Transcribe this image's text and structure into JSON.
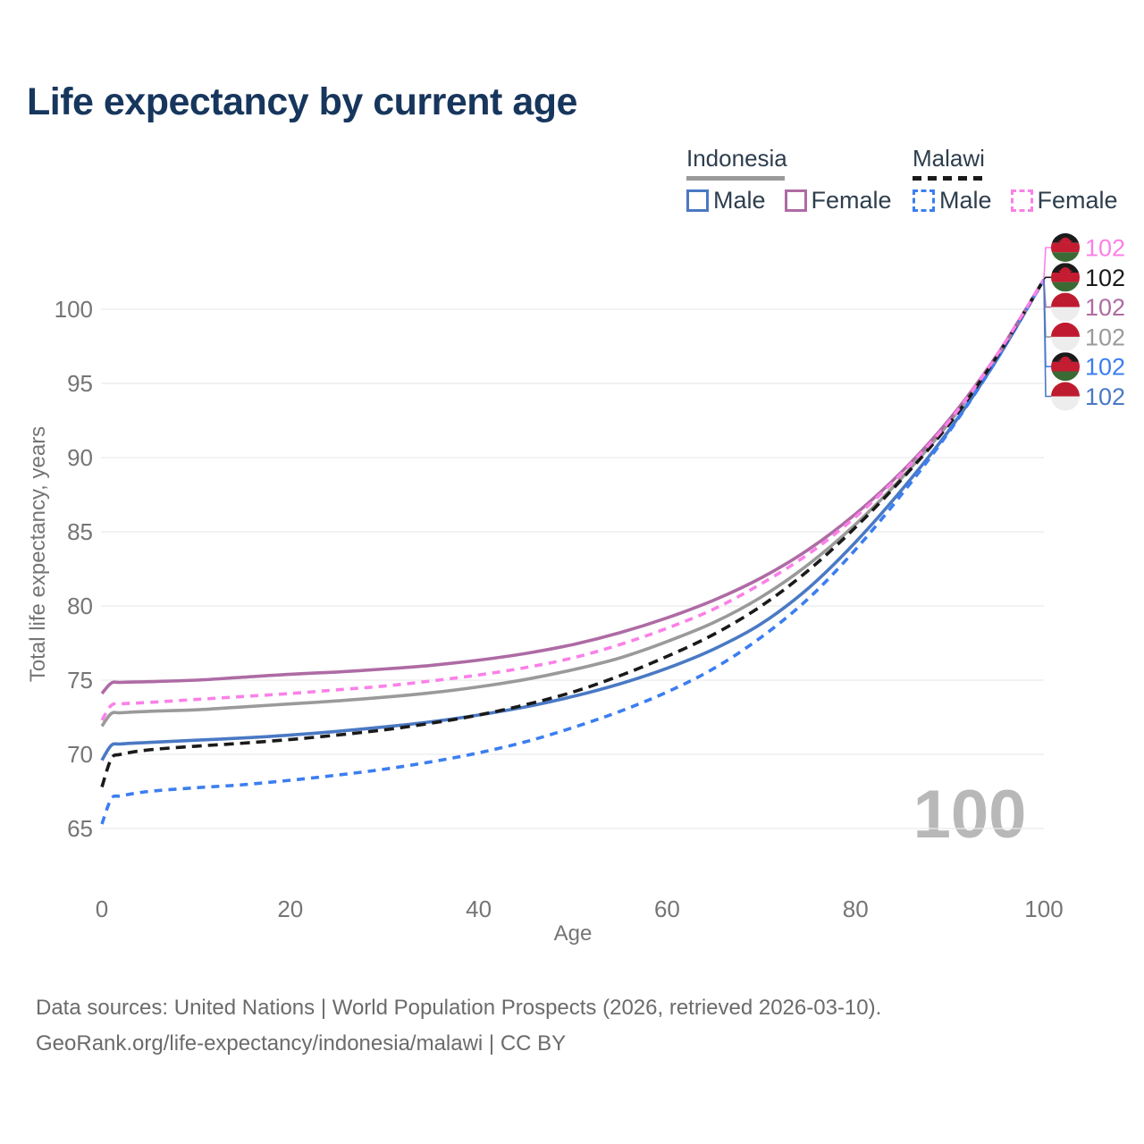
{
  "title": "Life expectancy by current age",
  "legend": {
    "groups": [
      {
        "country": "Indonesia",
        "line_style": "solid",
        "underline_color": "#9a9a9a",
        "items": [
          {
            "label": "Male",
            "color": "#4a79c4",
            "dashed": false
          },
          {
            "label": "Female",
            "color": "#ae6ba4",
            "dashed": false
          }
        ]
      },
      {
        "country": "Malawi",
        "line_style": "dashed",
        "underline_color": "#1a1a1a",
        "items": [
          {
            "label": "Male",
            "color": "#3b7ef0",
            "dashed": true
          },
          {
            "label": "Female",
            "color": "#fb80e8",
            "dashed": true
          }
        ]
      }
    ]
  },
  "chart_data": {
    "type": "line",
    "title": "Life expectancy by current age",
    "xlabel": "Age",
    "ylabel": "Total life expectancy, years",
    "x_ticks": [
      0,
      20,
      40,
      60,
      80,
      100
    ],
    "y_ticks": [
      65,
      70,
      75,
      80,
      85,
      90,
      95,
      100
    ],
    "xlim": [
      0,
      100
    ],
    "ylim": [
      63.5,
      103
    ],
    "grid": "horizontal-only",
    "legend_position": "top-right",
    "hover_age": "100",
    "x": [
      0,
      1,
      2,
      5,
      10,
      15,
      20,
      25,
      30,
      35,
      40,
      45,
      50,
      55,
      60,
      65,
      70,
      75,
      80,
      85,
      90,
      95,
      100
    ],
    "series": [
      {
        "id": "malawi-female",
        "country": "Malawi",
        "sex": "Female",
        "color": "#fb80e8",
        "dashed": true,
        "flag": "malawi",
        "end_label": "102",
        "values": [
          72.3,
          73.3,
          73.4,
          73.5,
          73.7,
          73.9,
          74.1,
          74.35,
          74.6,
          74.95,
          75.35,
          75.85,
          76.5,
          77.4,
          78.5,
          79.8,
          81.5,
          83.5,
          86.0,
          89.0,
          92.5,
          96.9,
          102
        ]
      },
      {
        "id": "malawi-both",
        "country": "Malawi",
        "sex": "Both sexes",
        "color": "#1a1a1a",
        "dashed": true,
        "flag": "malawi",
        "end_label": "102",
        "values": [
          67.8,
          69.7,
          70.0,
          70.3,
          70.55,
          70.75,
          71.0,
          71.3,
          71.65,
          72.1,
          72.65,
          73.35,
          74.2,
          75.3,
          76.6,
          78.1,
          80.0,
          82.4,
          85.3,
          88.6,
          92.3,
          96.8,
          102
        ]
      },
      {
        "id": "indonesia-female",
        "country": "Indonesia",
        "sex": "Female",
        "color": "#ae6ba4",
        "dashed": false,
        "flag": "indonesia",
        "end_label": "102",
        "values": [
          74.1,
          74.8,
          74.85,
          74.9,
          75.0,
          75.2,
          75.4,
          75.55,
          75.75,
          76.0,
          76.35,
          76.8,
          77.4,
          78.2,
          79.2,
          80.4,
          81.9,
          83.8,
          86.2,
          89.1,
          92.6,
          96.9,
          102
        ]
      },
      {
        "id": "indonesia-both",
        "country": "Indonesia",
        "sex": "Both sexes",
        "color": "#9a9a9a",
        "dashed": false,
        "flag": "indonesia",
        "end_label": "102",
        "values": [
          71.9,
          72.75,
          72.8,
          72.9,
          73.0,
          73.2,
          73.4,
          73.6,
          73.85,
          74.15,
          74.55,
          75.05,
          75.7,
          76.5,
          77.6,
          78.9,
          80.6,
          82.8,
          85.5,
          88.7,
          92.4,
          96.8,
          102
        ]
      },
      {
        "id": "malawi-male",
        "country": "Malawi",
        "sex": "Male",
        "color": "#3b7ef0",
        "dashed": true,
        "flag": "malawi",
        "end_label": "102",
        "values": [
          65.3,
          67.0,
          67.2,
          67.5,
          67.75,
          67.95,
          68.25,
          68.6,
          69.0,
          69.5,
          70.1,
          70.85,
          71.8,
          72.9,
          74.2,
          75.8,
          77.9,
          80.5,
          83.8,
          87.6,
          91.8,
          96.6,
          102
        ]
      },
      {
        "id": "indonesia-male",
        "country": "Indonesia",
        "sex": "Male",
        "color": "#4a79c4",
        "dashed": false,
        "flag": "indonesia",
        "end_label": "102",
        "values": [
          69.6,
          70.6,
          70.7,
          70.8,
          70.95,
          71.1,
          71.3,
          71.55,
          71.85,
          72.2,
          72.65,
          73.2,
          73.9,
          74.75,
          75.8,
          77.1,
          78.8,
          81.2,
          84.3,
          87.9,
          91.9,
          96.6,
          102
        ]
      }
    ]
  },
  "flags": {
    "indonesia": {
      "top": "#bf1b30",
      "bottom": "#ededed"
    },
    "malawi": {
      "stripes": [
        "#1b1b1b",
        "#c41c31",
        "#3a6b35"
      ],
      "sun": "#c41c31"
    }
  },
  "theme": {
    "background": "#ffffff",
    "title_color": "#17365d",
    "legend_text_color": "#2e3e4e",
    "axis_text_color": "#757575",
    "grid_color": "#e9e9e9",
    "watermark_color": "#b8b8b8",
    "footer_color": "#6b6b6b"
  },
  "footer": {
    "line1": "Data sources: United Nations | World Population Prospects (2026, retrieved 2026-03-10).",
    "line2": "GeoRank.org/life-expectancy/indonesia/malawi | CC BY"
  }
}
